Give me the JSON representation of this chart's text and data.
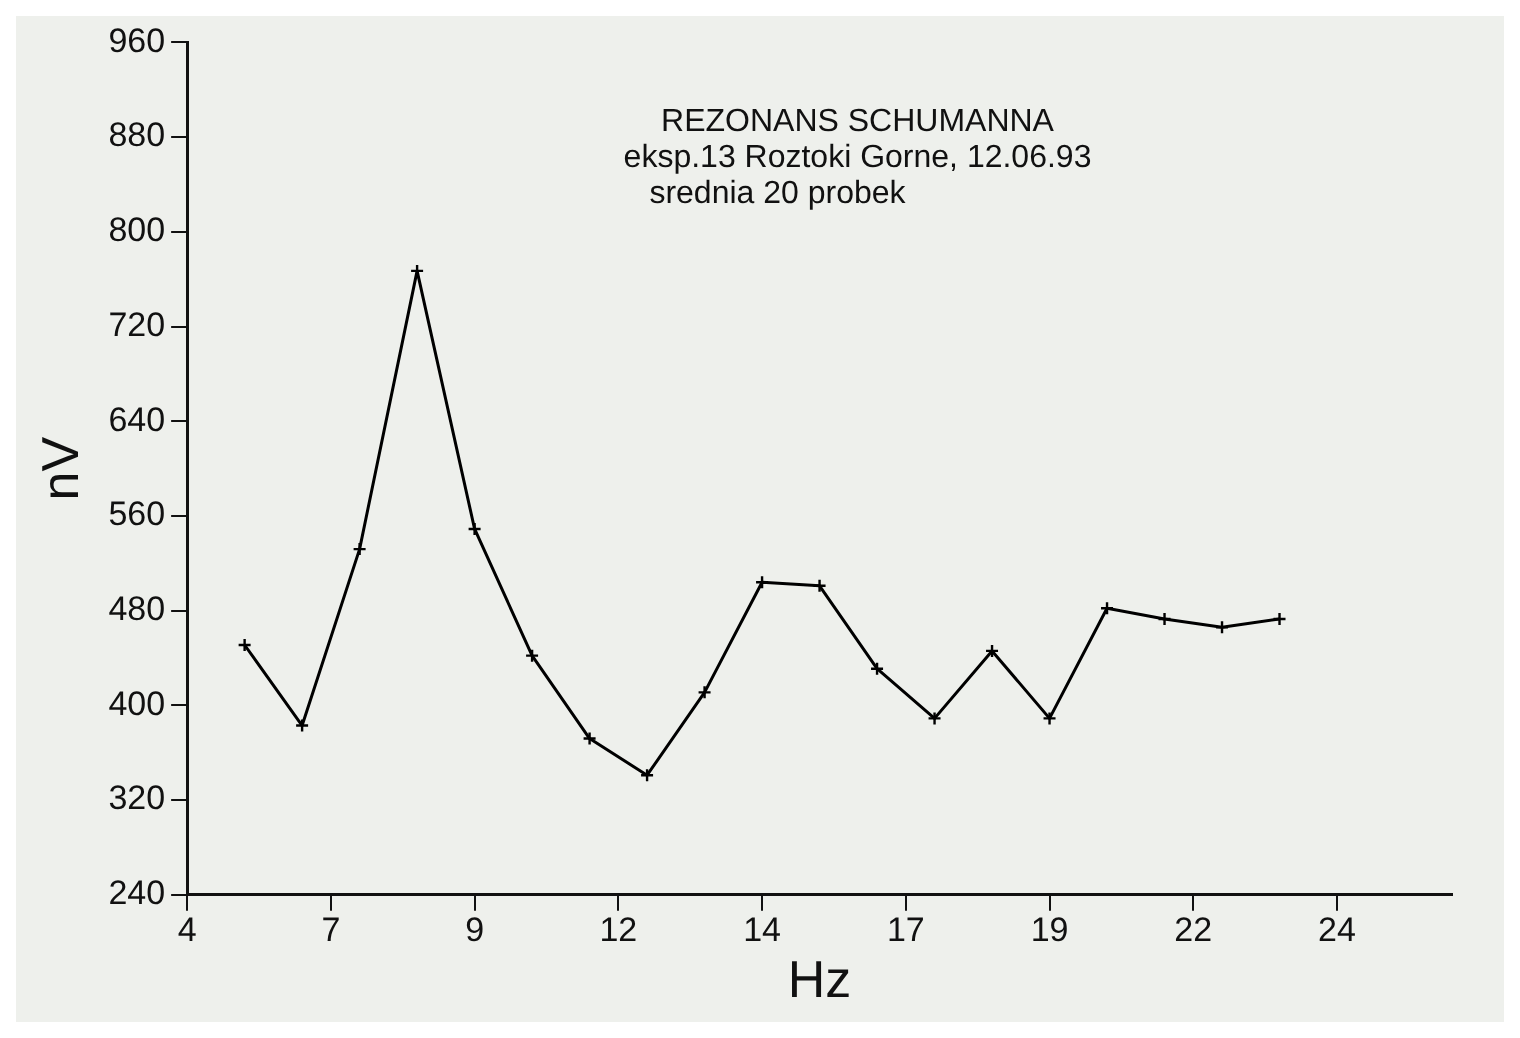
{
  "chart_data": {
    "type": "line",
    "title": "REZONANS SCHUMANNA",
    "subtitle": "eksp.13 Roztoki Gorne, 12.06.93",
    "annotations": [
      "srednia 20 probek"
    ],
    "xlabel": "Hz",
    "ylabel": "nV",
    "x": [
      5,
      6,
      7,
      8,
      9,
      10,
      11,
      12,
      13,
      14,
      15,
      16,
      17,
      18,
      19,
      20,
      21,
      22,
      23
    ],
    "series": [
      {
        "color": "#000000",
        "values": [
          451,
          383,
          532,
          767,
          549,
          442,
          372,
          341,
          411,
          504,
          501,
          431,
          389,
          446,
          389,
          482,
          473,
          466,
          473
        ]
      }
    ],
    "xlim": [
      4,
      26
    ],
    "xticks": [
      4,
      {
        "value": 6.5,
        "label": "7"
      },
      9,
      {
        "value": 11.5,
        "label": "12"
      },
      14,
      {
        "value": 16.5,
        "label": "17"
      },
      19,
      {
        "value": 21.5,
        "label": "22"
      },
      24
    ],
    "ylim": [
      240,
      960
    ],
    "yticks": [
      240,
      320,
      400,
      480,
      560,
      640,
      720,
      800,
      880,
      960
    ],
    "grid": false,
    "legend": false,
    "marker": "cross",
    "line_style": "solid"
  }
}
